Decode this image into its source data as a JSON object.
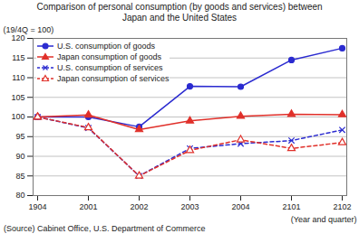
{
  "chart_data": {
    "type": "line",
    "title": "Comparison of personal consumption (by goods and services) between Japan and the United States",
    "y_label": "(19/4Q = 100)",
    "x_label": "(Year and quarter)",
    "caption": "(Source) Cabinet Office, U.S. Department of Commerce",
    "categories": [
      "1904",
      "2001",
      "2002",
      "2003",
      "2004",
      "2101",
      "2102"
    ],
    "series": [
      {
        "name": "U.S. consumption of goods",
        "color": "#2b2bd0",
        "marker": "circle",
        "line_style": "solid",
        "values": [
          100,
          100,
          97.5,
          107.8,
          107.7,
          114.5,
          117.5
        ]
      },
      {
        "name": "Japan consumption of goods",
        "color": "#e0302a",
        "marker": "triangle",
        "line_style": "solid",
        "values": [
          100,
          100.5,
          96.8,
          99,
          100.2,
          100.7,
          100.6
        ]
      },
      {
        "name": "U.S. consumption of services",
        "color": "#2b2bd0",
        "marker": "x",
        "line_style": "dashed",
        "values": [
          100,
          97.2,
          85,
          92,
          93.2,
          94,
          96.7
        ]
      },
      {
        "name": "Japan consumption of services",
        "color": "#e0302a",
        "marker": "triangle-open",
        "line_style": "dashed",
        "values": [
          100,
          97.3,
          85,
          91.5,
          94.2,
          92,
          93.5
        ]
      }
    ],
    "ylim": [
      80,
      120
    ],
    "yticks": [
      80,
      85,
      90,
      95,
      100,
      105,
      110,
      115,
      120
    ],
    "grid": true,
    "legend": "top-left"
  }
}
